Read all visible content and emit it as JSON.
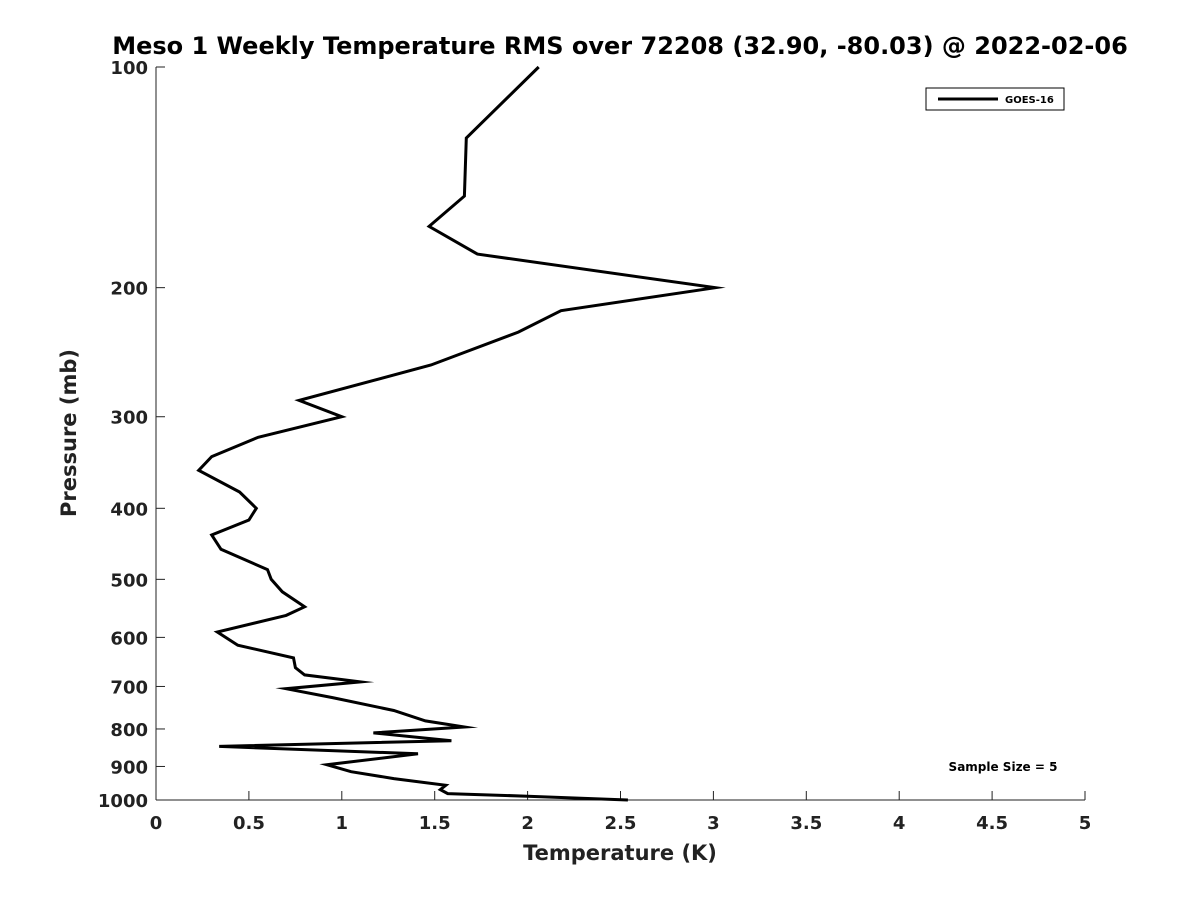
{
  "chart_data": {
    "type": "line",
    "title": "Meso 1 Weekly Temperature RMS over 72208 (32.90, -80.03) @ 2022-02-06",
    "xlabel": "Temperature (K)",
    "ylabel": "Pressure (mb)",
    "xlim": [
      0,
      5
    ],
    "ylim": [
      100,
      1000
    ],
    "y_scale": "log",
    "y_reversed": true,
    "x_ticks": [
      0,
      0.5,
      1,
      1.5,
      2,
      2.5,
      3,
      3.5,
      4,
      4.5,
      5
    ],
    "x_tick_labels": [
      "0",
      "0.5",
      "1",
      "1.5",
      "2",
      "2.5",
      "3",
      "3.5",
      "4",
      "4.5",
      "5"
    ],
    "y_ticks": [
      100,
      200,
      300,
      400,
      500,
      600,
      700,
      800,
      900,
      1000
    ],
    "y_tick_labels": [
      "100",
      "200",
      "300",
      "400",
      "500",
      "600",
      "700",
      "800",
      "900",
      "1000"
    ],
    "grid": false,
    "legend": {
      "placement": "top-right",
      "entries": [
        "GOES-16"
      ]
    },
    "annotation": "Sample Size = 5",
    "series": [
      {
        "name": "GOES-16",
        "color": "#000000",
        "points": [
          [
            2.06,
            100
          ],
          [
            1.67,
            125
          ],
          [
            1.66,
            150
          ],
          [
            1.47,
            165
          ],
          [
            1.73,
            180
          ],
          [
            3.01,
            200
          ],
          [
            2.18,
            215
          ],
          [
            1.95,
            230
          ],
          [
            1.48,
            255
          ],
          [
            0.77,
            285
          ],
          [
            1.0,
            300
          ],
          [
            0.55,
            320
          ],
          [
            0.3,
            340
          ],
          [
            0.23,
            355
          ],
          [
            0.45,
            380
          ],
          [
            0.54,
            400
          ],
          [
            0.5,
            415
          ],
          [
            0.3,
            435
          ],
          [
            0.35,
            455
          ],
          [
            0.6,
            485
          ],
          [
            0.62,
            500
          ],
          [
            0.68,
            520
          ],
          [
            0.8,
            545
          ],
          [
            0.7,
            560
          ],
          [
            0.33,
            590
          ],
          [
            0.44,
            615
          ],
          [
            0.74,
            640
          ],
          [
            0.75,
            660
          ],
          [
            0.8,
            675
          ],
          [
            1.1,
            690
          ],
          [
            0.7,
            705
          ],
          [
            0.95,
            725
          ],
          [
            1.28,
            755
          ],
          [
            1.45,
            780
          ],
          [
            1.66,
            795
          ],
          [
            1.17,
            810
          ],
          [
            1.59,
            830
          ],
          [
            0.34,
            845
          ],
          [
            1.41,
            865
          ],
          [
            0.92,
            895
          ],
          [
            1.05,
            915
          ],
          [
            1.28,
            935
          ],
          [
            1.56,
            955
          ],
          [
            1.53,
            968
          ],
          [
            1.57,
            980
          ],
          [
            2.0,
            988
          ],
          [
            2.54,
            1000
          ]
        ]
      }
    ]
  }
}
